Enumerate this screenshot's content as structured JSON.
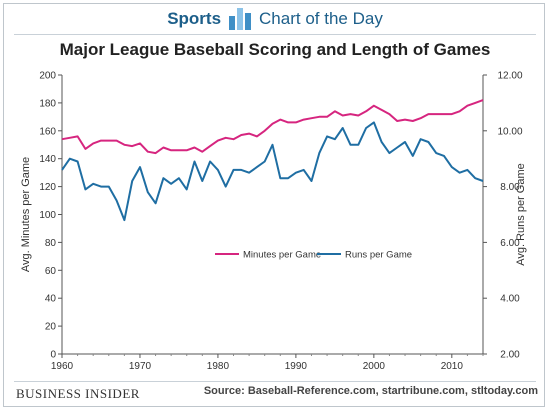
{
  "header": {
    "section": "Sports",
    "subtitle": "Chart of the Day",
    "logo_icon": "chart-of-the-day-icon"
  },
  "footer": {
    "brand": "BUSINESS INSIDER",
    "source": "Source: Baseball-Reference.com, startribune.com, stltoday.com"
  },
  "colors": {
    "minutes": "#d6257f",
    "runs": "#1f6ea3",
    "accent": "#1d5f8a"
  },
  "chart_data": {
    "type": "line",
    "title": "Major League Baseball  Scoring and Length of Games",
    "xlabel": "",
    "ylabel": "Avg. Minutes per Game",
    "y2label": "Avg. Runs per Game",
    "xlim": [
      1960,
      2014
    ],
    "x_ticks": [
      "1960",
      "1970",
      "1980",
      "1990",
      "2000",
      "2010"
    ],
    "ylim": [
      0,
      200
    ],
    "y_ticks": [
      "0",
      "20",
      "40",
      "60",
      "80",
      "100",
      "120",
      "140",
      "160",
      "180",
      "200"
    ],
    "y2lim": [
      2,
      12
    ],
    "y2_ticks": [
      "2.00",
      "4.00",
      "6.00",
      "8.00",
      "10.00",
      "12.00"
    ],
    "grid": false,
    "legend": "center",
    "x": [
      1960,
      1961,
      1962,
      1963,
      1964,
      1965,
      1966,
      1967,
      1968,
      1969,
      1970,
      1971,
      1972,
      1973,
      1974,
      1975,
      1976,
      1977,
      1978,
      1979,
      1980,
      1981,
      1982,
      1983,
      1984,
      1985,
      1986,
      1987,
      1988,
      1989,
      1990,
      1991,
      1992,
      1993,
      1994,
      1995,
      1996,
      1997,
      1998,
      1999,
      2000,
      2001,
      2002,
      2003,
      2004,
      2005,
      2006,
      2007,
      2008,
      2009,
      2010,
      2011,
      2012,
      2013,
      2014
    ],
    "series": [
      {
        "name": "Minutes per Game",
        "axis": "left",
        "values": [
          154,
          155,
          156,
          147,
          151,
          153,
          153,
          153,
          150,
          149,
          151,
          145,
          144,
          148,
          146,
          146,
          146,
          148,
          145,
          149,
          153,
          155,
          154,
          157,
          158,
          156,
          160,
          165,
          168,
          166,
          166,
          168,
          169,
          170,
          170,
          174,
          171,
          172,
          171,
          174,
          178,
          175,
          172,
          167,
          168,
          167,
          169,
          172,
          172,
          172,
          172,
          174,
          178,
          180,
          182
        ]
      },
      {
        "name": "Runs per Game",
        "axis": "right",
        "values": [
          8.6,
          9.0,
          8.9,
          7.9,
          8.1,
          8.0,
          8.0,
          7.5,
          6.8,
          8.2,
          8.7,
          7.8,
          7.4,
          8.3,
          8.1,
          8.3,
          7.9,
          8.9,
          8.2,
          8.9,
          8.6,
          8.0,
          8.6,
          8.6,
          8.5,
          8.7,
          8.9,
          9.5,
          8.3,
          8.3,
          8.5,
          8.6,
          8.2,
          9.2,
          9.8,
          9.7,
          10.1,
          9.5,
          9.5,
          10.1,
          10.3,
          9.6,
          9.2,
          9.4,
          9.6,
          9.1,
          9.7,
          9.6,
          9.2,
          9.1,
          8.7,
          8.5,
          8.6,
          8.3,
          8.2
        ]
      }
    ]
  }
}
